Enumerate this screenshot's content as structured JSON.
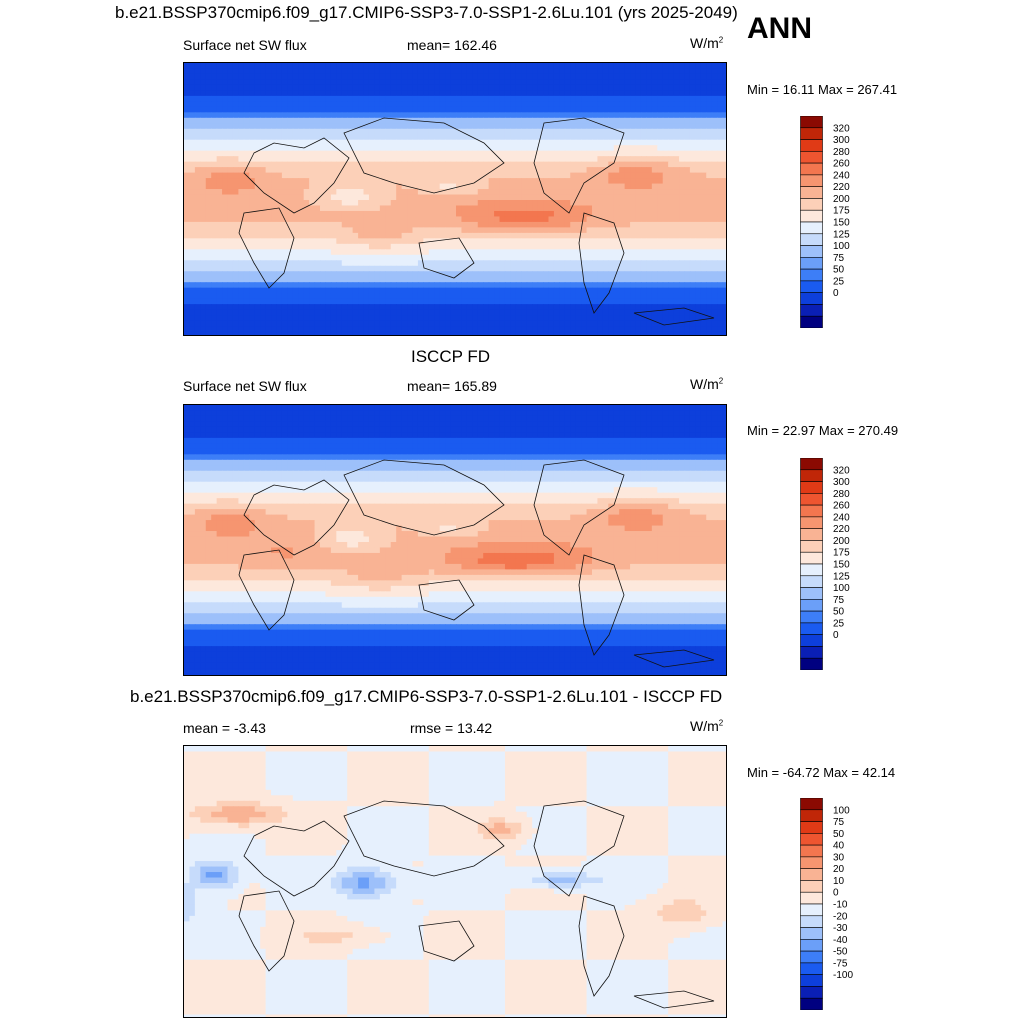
{
  "season": "ANN",
  "colormaps": {
    "abs": [
      "#000080",
      "#0a1fb5",
      "#0d3fdb",
      "#1a5bf0",
      "#3d7ef7",
      "#6b9ff8",
      "#9dc0fa",
      "#c6dbfb",
      "#e6f0fd",
      "#fde8dc",
      "#fcd0b8",
      "#f9b394",
      "#f69570",
      "#f3764f",
      "#ee5530",
      "#e03a16",
      "#c02608",
      "#8b0a02"
    ],
    "diff": [
      "#000080",
      "#0a1fb5",
      "#0d3fdb",
      "#1a5bf0",
      "#3d7ef7",
      "#6b9ff8",
      "#9dc0fa",
      "#c6dbfb",
      "#e6f0fd",
      "#fde8dc",
      "#fcd0b8",
      "#f9b394",
      "#f69570",
      "#f3764f",
      "#ee5530",
      "#e03a16",
      "#c02608",
      "#8b0a02"
    ]
  },
  "panels": [
    {
      "title": "b.e21.BSSP370cmip6.f09_g17.CMIP6-SSP3-7.0-SSP1-2.6Lu.101 (yrs 2025-2049)",
      "left_label": "Surface net SW flux",
      "center_label": "mean= 162.46",
      "units_base": "W/m",
      "units_exp": "2",
      "min_max": "Min =  16.11 Max = 267.41",
      "colorbar_labels": [
        "320",
        "300",
        "280",
        "260",
        "240",
        "220",
        "200",
        "175",
        "150",
        "125",
        "100",
        "75",
        "50",
        "25",
        "0"
      ]
    },
    {
      "title": "ISCCP FD",
      "left_label": "Surface net SW flux",
      "center_label": "mean= 165.89",
      "units_base": "W/m",
      "units_exp": "2",
      "min_max": "Min =  22.97 Max = 270.49",
      "colorbar_labels": [
        "320",
        "300",
        "280",
        "260",
        "240",
        "220",
        "200",
        "175",
        "150",
        "125",
        "100",
        "75",
        "50",
        "25",
        "0"
      ]
    },
    {
      "title": "b.e21.BSSP370cmip6.f09_g17.CMIP6-SSP3-7.0-SSP1-2.6Lu.101 - ISCCP FD",
      "left_label": "mean =  -3.43",
      "center_label": "rmse =  13.42",
      "units_base": "W/m",
      "units_exp": "2",
      "min_max": "Min = -64.72 Max =  42.14",
      "colorbar_labels": [
        "100",
        "75",
        "50",
        "40",
        "30",
        "20",
        "10",
        "0",
        "-10",
        "-20",
        "-30",
        "-40",
        "-50",
        "-75",
        "-100"
      ]
    }
  ],
  "chart_data": [
    {
      "type": "heatmap",
      "title": "b.e21.BSSP370cmip6.f09_g17.CMIP6-SSP3-7.0-SSP1-2.6Lu.101 (yrs 2025-2049)",
      "variable": "Surface net SW flux",
      "units": "W/m2",
      "mean": 162.46,
      "min": 16.11,
      "max": 267.41,
      "levels": [
        0,
        25,
        50,
        75,
        100,
        125,
        150,
        175,
        200,
        220,
        240,
        260,
        280,
        300,
        320
      ]
    },
    {
      "type": "heatmap",
      "title": "ISCCP FD",
      "variable": "Surface net SW flux",
      "units": "W/m2",
      "mean": 165.89,
      "min": 22.97,
      "max": 270.49,
      "levels": [
        0,
        25,
        50,
        75,
        100,
        125,
        150,
        175,
        200,
        220,
        240,
        260,
        280,
        300,
        320
      ]
    },
    {
      "type": "heatmap",
      "title": "b.e21.BSSP370cmip6.f09_g17.CMIP6-SSP3-7.0-SSP1-2.6Lu.101 - ISCCP FD",
      "units": "W/m2",
      "mean": -3.43,
      "rmse": 13.42,
      "min": -64.72,
      "max": 42.14,
      "levels": [
        -100,
        -75,
        -50,
        -40,
        -30,
        -20,
        -10,
        0,
        10,
        20,
        30,
        40,
        50,
        75,
        100
      ]
    }
  ]
}
